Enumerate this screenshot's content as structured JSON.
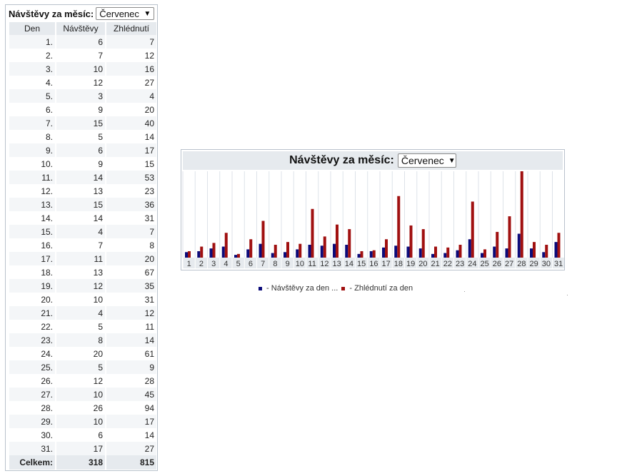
{
  "stats_table": {
    "header_label": "Návštěvy za měsíc:",
    "selected_month": "Červenec",
    "columns": [
      "Den",
      "Návštěvy",
      "Zhlédnutí"
    ],
    "rows": [
      [
        "1.",
        "6",
        "7"
      ],
      [
        "2.",
        "7",
        "12"
      ],
      [
        "3.",
        "10",
        "16"
      ],
      [
        "4.",
        "12",
        "27"
      ],
      [
        "5.",
        "3",
        "4"
      ],
      [
        "6.",
        "9",
        "20"
      ],
      [
        "7.",
        "15",
        "40"
      ],
      [
        "8.",
        "5",
        "14"
      ],
      [
        "9.",
        "6",
        "17"
      ],
      [
        "10.",
        "9",
        "15"
      ],
      [
        "11.",
        "14",
        "53"
      ],
      [
        "12.",
        "13",
        "23"
      ],
      [
        "13.",
        "15",
        "36"
      ],
      [
        "14.",
        "14",
        "31"
      ],
      [
        "15.",
        "4",
        "7"
      ],
      [
        "16.",
        "7",
        "8"
      ],
      [
        "17.",
        "11",
        "20"
      ],
      [
        "18.",
        "13",
        "67"
      ],
      [
        "19.",
        "12",
        "35"
      ],
      [
        "20.",
        "10",
        "31"
      ],
      [
        "21.",
        "4",
        "12"
      ],
      [
        "22.",
        "5",
        "11"
      ],
      [
        "23.",
        "8",
        "14"
      ],
      [
        "24.",
        "20",
        "61"
      ],
      [
        "25.",
        "5",
        "9"
      ],
      [
        "26.",
        "12",
        "28"
      ],
      [
        "27.",
        "10",
        "45"
      ],
      [
        "28.",
        "26",
        "94"
      ],
      [
        "29.",
        "10",
        "17"
      ],
      [
        "30.",
        "6",
        "14"
      ],
      [
        "31.",
        "17",
        "27"
      ]
    ],
    "total": [
      "Celkem:",
      "318",
      "815"
    ]
  },
  "chart_panel": {
    "title": "Návštěvy za měsíc:",
    "selected_month": "Červenec"
  },
  "chart_data": {
    "type": "bar",
    "categories": [
      "1",
      "2",
      "3",
      "4",
      "5",
      "6",
      "7",
      "8",
      "9",
      "10",
      "11",
      "12",
      "13",
      "14",
      "15",
      "16",
      "17",
      "18",
      "19",
      "20",
      "21",
      "22",
      "23",
      "24",
      "25",
      "26",
      "27",
      "28",
      "29",
      "30",
      "31"
    ],
    "series": [
      {
        "name": "Návštěvy za den ...",
        "color": "#0b0b7a",
        "values": [
          6,
          7,
          10,
          12,
          3,
          9,
          15,
          5,
          6,
          9,
          14,
          13,
          15,
          14,
          4,
          7,
          11,
          13,
          12,
          10,
          4,
          5,
          8,
          20,
          5,
          12,
          10,
          26,
          10,
          6,
          17
        ]
      },
      {
        "name": "Zhlédnutí za den",
        "color": "#a01010",
        "values": [
          7,
          12,
          16,
          27,
          4,
          20,
          40,
          14,
          17,
          15,
          53,
          23,
          36,
          31,
          7,
          8,
          20,
          67,
          35,
          31,
          12,
          11,
          14,
          61,
          9,
          28,
          45,
          94,
          17,
          14,
          27
        ]
      }
    ],
    "ylim": [
      0,
      94
    ],
    "grid": true,
    "legend_position": "bottom"
  },
  "legend": {
    "separator": " - "
  }
}
